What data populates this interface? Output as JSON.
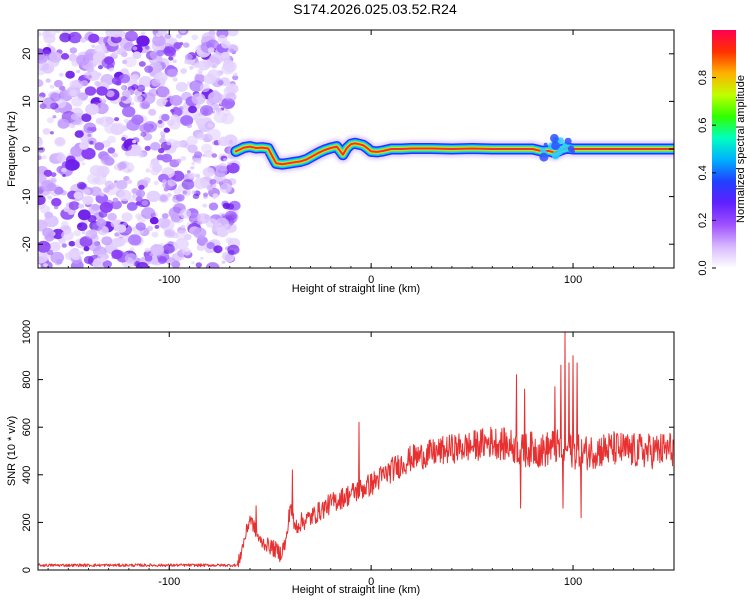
{
  "title": "S174.2026.025.03.52.R24",
  "chart_data": [
    {
      "type": "heatmap",
      "xlabel": "Height of straight line (km)",
      "ylabel": "Frequency (Hz)",
      "xlim": [
        -165,
        150
      ],
      "ylim": [
        -25,
        25
      ],
      "x_ticks": [
        -100,
        0,
        100
      ],
      "y_ticks": [
        -20,
        -10,
        0,
        10,
        20
      ],
      "noise_region_x": [
        -165,
        -67
      ],
      "ridge": {
        "x": [
          -67,
          -63,
          -60,
          -57,
          -54,
          -51,
          -49,
          -47,
          -44,
          -41,
          -38,
          -35,
          -32,
          -29,
          -26,
          -23,
          -20,
          -17,
          -14,
          -12,
          -10,
          -8,
          -6,
          -4,
          -2,
          0,
          3,
          6,
          10,
          15,
          20,
          30,
          40,
          50,
          60,
          70,
          80,
          85,
          88,
          91,
          94,
          97,
          100,
          105,
          110,
          120,
          130,
          140,
          150
        ],
        "y": [
          -0.5,
          0.3,
          0.5,
          0.2,
          0.3,
          0.1,
          -1.5,
          -3,
          -3.2,
          -3,
          -2.8,
          -2.6,
          -2.2,
          -1.5,
          -0.8,
          -0.2,
          0.2,
          0.5,
          -1.2,
          0.2,
          1.0,
          1.2,
          1.0,
          0.8,
          0.2,
          -0.5,
          -0.6,
          -0.4,
          0.0,
          0.0,
          0.1,
          0.1,
          0.0,
          0.1,
          0.0,
          0.0,
          0.0,
          -0.5,
          -0.4,
          -0.8,
          -0.2,
          0.2,
          0.0,
          0.0,
          0.0,
          0.0,
          0.0,
          0.0,
          0.0
        ]
      },
      "colorbar": {
        "label": "Normalized spectral amplitude",
        "range": [
          0.0,
          1.0
        ],
        "ticks": [
          "0.0",
          "0.2",
          "0.4",
          "0.6",
          "0.8"
        ],
        "colors": [
          "#ffffff",
          "#d7b8ff",
          "#a050ff",
          "#6020ff",
          "#2040ff",
          "#00b0ff",
          "#00ffc0",
          "#30ff00",
          "#c0ff00",
          "#ffb000",
          "#ff3000",
          "#ff0050"
        ]
      }
    },
    {
      "type": "line",
      "xlabel": "Height of straight line (km)",
      "ylabel": "SNR (10 * v/v)",
      "xlim": [
        -165,
        150
      ],
      "ylim": [
        0,
        1000
      ],
      "x_ticks": [
        -100,
        0,
        100
      ],
      "y_ticks": [
        0,
        200,
        400,
        600,
        800,
        1000
      ],
      "color": "#e83030",
      "trend": {
        "x": [
          -165,
          -130,
          -100,
          -80,
          -66,
          -60,
          -55,
          -50,
          -45,
          -42,
          -40,
          -38,
          -35,
          -30,
          -25,
          -20,
          -15,
          -10,
          -5,
          0,
          10,
          20,
          30,
          40,
          50,
          60,
          70,
          75,
          80,
          85,
          90,
          95,
          100,
          105,
          110,
          120,
          130,
          140,
          150
        ],
        "y": [
          20,
          20,
          20,
          20,
          20,
          220,
          120,
          100,
          70,
          120,
          280,
          180,
          200,
          220,
          250,
          280,
          300,
          320,
          340,
          360,
          420,
          470,
          490,
          510,
          520,
          540,
          520,
          500,
          510,
          500,
          520,
          510,
          500,
          490,
          500,
          510,
          500,
          500,
          510
        ]
      },
      "spikes": [
        {
          "x": -57,
          "y": 270
        },
        {
          "x": -39,
          "y": 420
        },
        {
          "x": -6,
          "y": 620
        },
        {
          "x": 72,
          "y": 820
        },
        {
          "x": 74,
          "y": 260
        },
        {
          "x": 76,
          "y": 760
        },
        {
          "x": 91,
          "y": 770
        },
        {
          "x": 94,
          "y": 860
        },
        {
          "x": 95,
          "y": 260
        },
        {
          "x": 96,
          "y": 1000
        },
        {
          "x": 98,
          "y": 870
        },
        {
          "x": 100,
          "y": 900
        },
        {
          "x": 102,
          "y": 870
        },
        {
          "x": 104,
          "y": 220
        }
      ]
    }
  ]
}
